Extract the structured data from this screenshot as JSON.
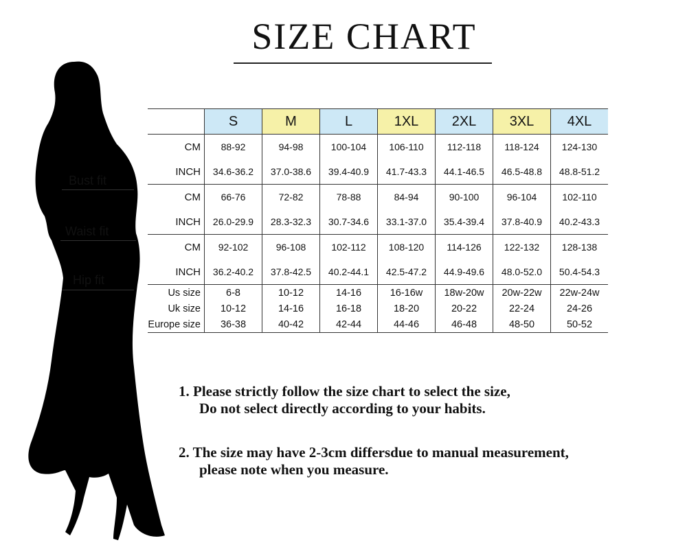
{
  "title": "SIZE CHART",
  "header_colors": {
    "blue": "#cde8f6",
    "yellow": "#f6f1a8"
  },
  "sizes": [
    "S",
    "M",
    "L",
    "1XL",
    "2XL",
    "3XL",
    "4XL"
  ],
  "fit_labels": {
    "bust": "Bust fit",
    "waist": "Waist fit",
    "hip": "Hip fit"
  },
  "rows": [
    {
      "label": "CM",
      "values": [
        "88-92",
        "94-98",
        "100-104",
        "106-110",
        "112-118",
        "118-124",
        "124-130"
      ]
    },
    {
      "label": "INCH",
      "values": [
        "34.6-36.2",
        "37.0-38.6",
        "39.4-40.9",
        "41.7-43.3",
        "44.1-46.5",
        "46.5-48.8",
        "48.8-51.2"
      ]
    },
    {
      "label": "CM",
      "values": [
        "66-76",
        "72-82",
        "78-88",
        "84-94",
        "90-100",
        "96-104",
        "102-110"
      ]
    },
    {
      "label": "INCH",
      "values": [
        "26.0-29.9",
        "28.3-32.3",
        "30.7-34.6",
        "33.1-37.0",
        "35.4-39.4",
        "37.8-40.9",
        "40.2-43.3"
      ]
    },
    {
      "label": "CM",
      "values": [
        "92-102",
        "96-108",
        "102-112",
        "108-120",
        "114-126",
        "122-132",
        "128-138"
      ]
    },
    {
      "label": "INCH",
      "values": [
        "36.2-40.2",
        "37.8-42.5",
        "40.2-44.1",
        "42.5-47.2",
        "44.9-49.6",
        "48.0-52.0",
        "50.4-54.3"
      ]
    },
    {
      "label": "Us size",
      "values": [
        "6-8",
        "10-12",
        "14-16",
        "16-16w",
        "18w-20w",
        "20w-22w",
        "22w-24w"
      ]
    },
    {
      "label": "Uk size",
      "values": [
        "10-12",
        "14-16",
        "16-18",
        "18-20",
        "20-22",
        "22-24",
        "24-26"
      ]
    },
    {
      "label": "Europe size",
      "values": [
        "36-38",
        "40-42",
        "42-44",
        "44-46",
        "46-48",
        "48-50",
        "50-52"
      ]
    }
  ],
  "notes": [
    {
      "line1": "1.  Please strictly follow the size chart to select the size,",
      "line2": "Do not select directly according to your habits."
    },
    {
      "line1": "2.  The size may have 2-3cm differsdue to manual measurement,",
      "line2": "please note when you measure."
    }
  ]
}
